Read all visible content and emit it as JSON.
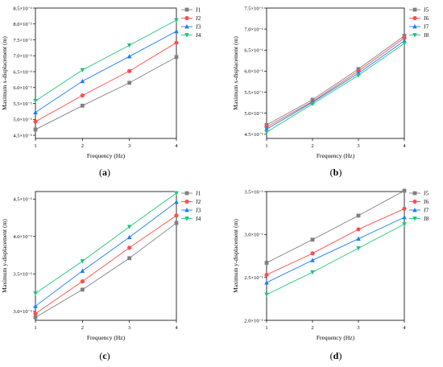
{
  "chart_data": [
    {
      "type": "line",
      "panel": "(a)",
      "panel_letter": "a",
      "xlabel": "Frequency (Hz)",
      "ylabel": "Maximum x-displacement (m)",
      "x": [
        1,
        2,
        3,
        4
      ],
      "xlim": [
        1,
        4
      ],
      "ylim": [
        4.4,
        8.5
      ],
      "yticks": [
        "4.5×10⁻¹",
        "5.0×10⁻¹",
        "5.5×10⁻¹",
        "6.0×10⁻¹",
        "6.5×10⁻¹",
        "7.0×10⁻¹",
        "7.5×10⁻¹",
        "8.0×10⁻¹",
        "8.5×10⁻¹"
      ],
      "ytick_values": [
        4.5,
        5.0,
        5.5,
        6.0,
        6.5,
        7.0,
        7.5,
        8.0,
        8.5
      ],
      "legend_position": "top-right",
      "series": [
        {
          "name": "J1",
          "color": "#808080",
          "marker": "square",
          "values": [
            4.68,
            5.43,
            6.15,
            6.96
          ]
        },
        {
          "name": "J2",
          "color": "#ff4d4d",
          "marker": "circle",
          "values": [
            4.93,
            5.75,
            6.52,
            7.41
          ]
        },
        {
          "name": "J3",
          "color": "#1e7bff",
          "marker": "triangle",
          "values": [
            5.22,
            6.2,
            6.98,
            7.77
          ]
        },
        {
          "name": "J4",
          "color": "#1dc47a",
          "marker": "triangle-down",
          "values": [
            5.58,
            6.55,
            7.33,
            8.12
          ]
        }
      ]
    },
    {
      "type": "line",
      "panel": "(b)",
      "panel_letter": "b",
      "xlabel": "Frequency (Hz)",
      "ylabel": "Maximum x-displacement (m)",
      "x": [
        1,
        2,
        3,
        4
      ],
      "xlim": [
        1,
        4
      ],
      "ylim": [
        4.4,
        7.5
      ],
      "yticks": [
        "4.5×10⁻¹",
        "5.0×10⁻¹",
        "5.5×10⁻¹",
        "6.0×10⁻¹",
        "6.5×10⁻¹",
        "7.0×10⁻¹",
        "7.5×10⁻¹"
      ],
      "ytick_values": [
        4.5,
        5.0,
        5.5,
        6.0,
        6.5,
        7.0,
        7.5
      ],
      "legend_position": "top-right",
      "series": [
        {
          "name": "J5",
          "color": "#808080",
          "marker": "square",
          "values": [
            4.72,
            5.32,
            6.05,
            6.84
          ]
        },
        {
          "name": "J6",
          "color": "#ff4d4d",
          "marker": "circle",
          "values": [
            4.67,
            5.28,
            6.0,
            6.79
          ]
        },
        {
          "name": "J7",
          "color": "#1e7bff",
          "marker": "triangle",
          "values": [
            4.62,
            5.26,
            5.95,
            6.72
          ]
        },
        {
          "name": "J8",
          "color": "#1dc47a",
          "marker": "triangle-down",
          "values": [
            4.55,
            5.22,
            5.9,
            6.66
          ]
        }
      ]
    },
    {
      "type": "line",
      "panel": "(c)",
      "panel_letter": "c",
      "xlabel": "Frequency (Hz)",
      "ylabel": "Maximum y-displacement (m)",
      "x": [
        1,
        2,
        3,
        4
      ],
      "xlim": [
        1,
        4
      ],
      "ylim": [
        2.88,
        4.6
      ],
      "yticks": [
        "3.0×10⁻¹",
        "3.5×10⁻¹",
        "4.0×10⁻¹",
        "4.5×10⁻¹"
      ],
      "ytick_values": [
        3.0,
        3.5,
        4.0,
        4.5
      ],
      "legend_position": "top-right",
      "series": [
        {
          "name": "J1",
          "color": "#808080",
          "marker": "square",
          "values": [
            2.92,
            3.29,
            3.71,
            4.18
          ]
        },
        {
          "name": "J2",
          "color": "#ff4d4d",
          "marker": "circle",
          "values": [
            2.97,
            3.4,
            3.85,
            4.28
          ]
        },
        {
          "name": "J3",
          "color": "#1e7bff",
          "marker": "triangle",
          "values": [
            3.07,
            3.54,
            3.99,
            4.46
          ]
        },
        {
          "name": "J4",
          "color": "#1dc47a",
          "marker": "triangle-down",
          "values": [
            3.24,
            3.67,
            4.13,
            4.58
          ]
        }
      ]
    },
    {
      "type": "line",
      "panel": "(d)",
      "panel_letter": "d",
      "xlabel": "Frequency (Hz)",
      "ylabel": "Maximum y-displacement (m)",
      "x": [
        1,
        2,
        3,
        4
      ],
      "xlim": [
        1,
        4
      ],
      "ylim": [
        2.0,
        3.5
      ],
      "yticks": [
        "2.0×10⁻¹",
        "2.5×10⁻¹",
        "3.0×10⁻¹",
        "3.5×10⁻¹"
      ],
      "ytick_values": [
        2.0,
        2.5,
        3.0,
        3.5
      ],
      "legend_position": "top-right",
      "series": [
        {
          "name": "J5",
          "color": "#808080",
          "marker": "square",
          "values": [
            2.67,
            2.94,
            3.22,
            3.51
          ]
        },
        {
          "name": "J6",
          "color": "#ff4d4d",
          "marker": "circle",
          "values": [
            2.53,
            2.78,
            3.06,
            3.3
          ]
        },
        {
          "name": "J7",
          "color": "#1e7bff",
          "marker": "triangle",
          "values": [
            2.44,
            2.7,
            2.95,
            3.2
          ]
        },
        {
          "name": "J8",
          "color": "#1dc47a",
          "marker": "triangle-down",
          "values": [
            2.3,
            2.56,
            2.84,
            3.12
          ]
        }
      ]
    }
  ]
}
